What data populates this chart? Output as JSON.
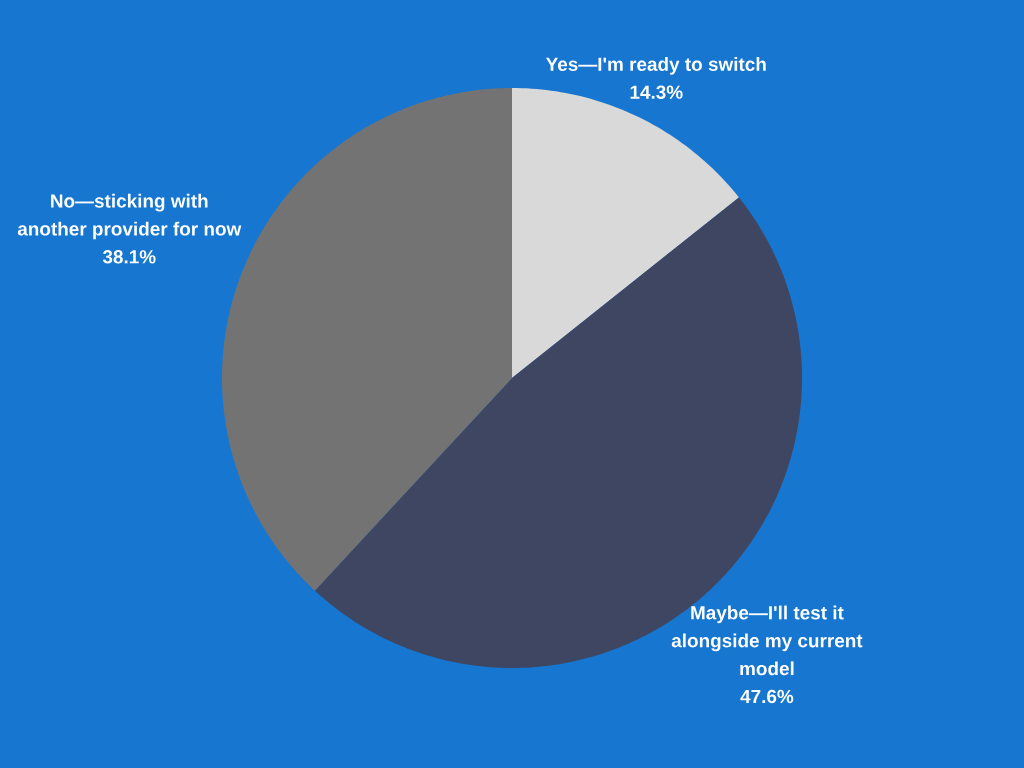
{
  "chart_data": {
    "type": "pie",
    "categories": [
      "Yes—I'm ready to switch",
      "Maybe—I'll test it alongside my current model",
      "No—sticking with another provider for now"
    ],
    "values": [
      14.3,
      47.6,
      38.1
    ],
    "value_labels": [
      "14.3%",
      "47.6%",
      "38.1%"
    ],
    "colors": [
      "#d9d9d9",
      "#3e4662",
      "#737373"
    ]
  }
}
